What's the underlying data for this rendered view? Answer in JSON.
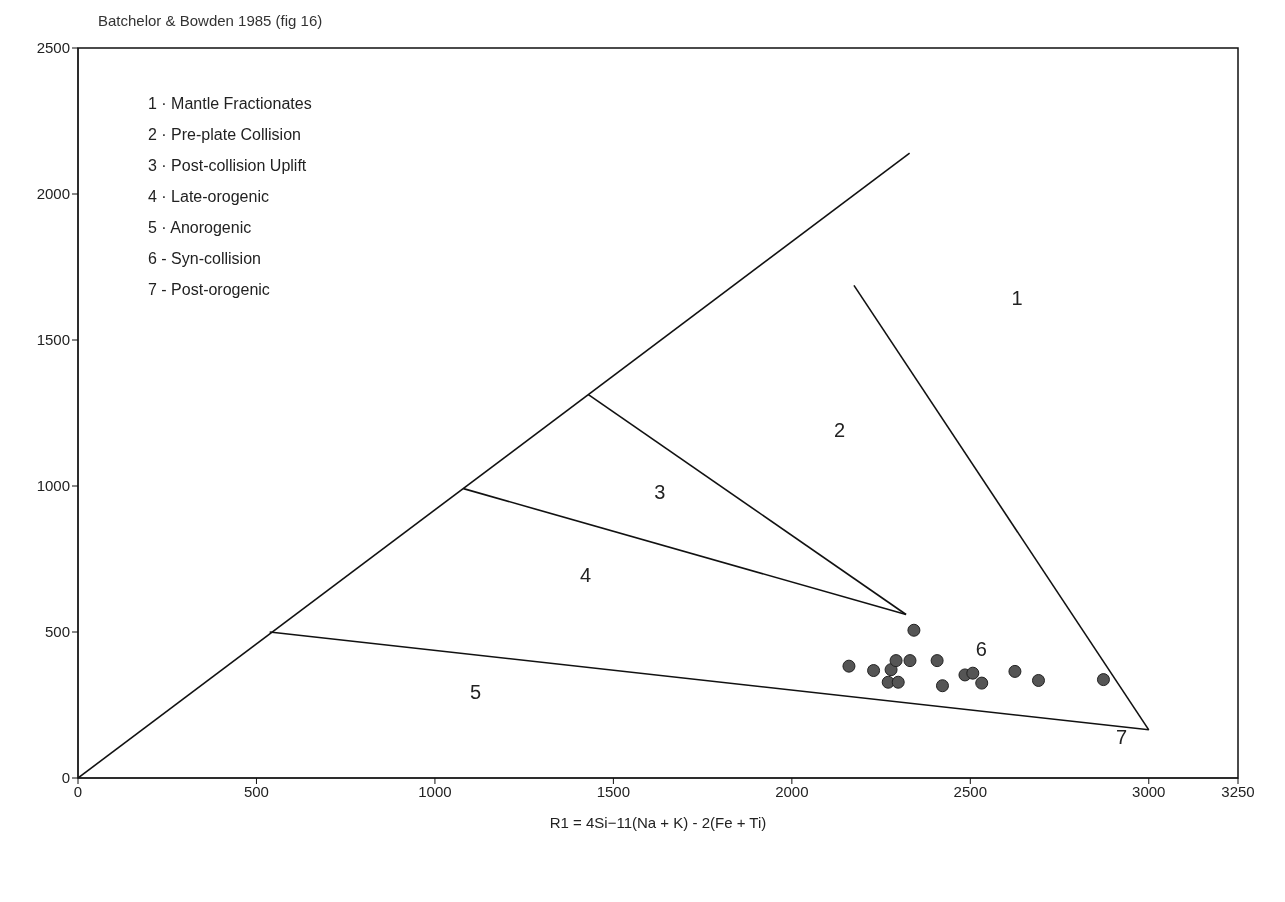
{
  "chart_data": {
    "type": "scatter",
    "title": "Batchelor & Bowden 1985 (fig 16)",
    "xlabel": "R1 = 4Si−11(Na + K) - 2(Fe + Ti)",
    "xlim": [
      0,
      3250
    ],
    "xticks": [
      0,
      500,
      1000,
      1500,
      2000,
      2500,
      3000,
      3250
    ],
    "ylim": [
      0,
      2500
    ],
    "yticks": [
      0,
      500,
      1000,
      1500,
      2000,
      2500
    ],
    "grid": false,
    "legend": false,
    "marker": "circle",
    "series": [
      {
        "type": "line",
        "marker": "none",
        "color": "#111111",
        "x": [
          0,
          2330
        ],
        "values": [
          0,
          2140
        ]
      },
      {
        "type": "line",
        "marker": "none",
        "color": "#111111",
        "x": [
          2174,
          3000
        ],
        "values": [
          1687,
          165
        ]
      },
      {
        "type": "line",
        "marker": "none",
        "color": "#111111",
        "x": [
          537,
          3000
        ],
        "values": [
          500,
          165
        ]
      },
      {
        "type": "line",
        "marker": "none",
        "color": "#111111",
        "x": [
          1430,
          2320
        ],
        "values": [
          1313,
          560
        ]
      },
      {
        "type": "line",
        "marker": "none",
        "color": "#111111",
        "x": [
          1080,
          2320
        ],
        "values": [
          991,
          560
        ]
      },
      {
        "type": "scatter",
        "color": "#555555",
        "x": [
          2160,
          2229,
          2270,
          2298,
          2278,
          2292,
          2331,
          2342,
          2407,
          2422,
          2485,
          2507,
          2532,
          2625,
          2691,
          2873
        ],
        "values": [
          383,
          368,
          328,
          328,
          371,
          402,
          402,
          506,
          402,
          316,
          353,
          359,
          325,
          365,
          334,
          337
        ]
      }
    ],
    "annotations": [
      "1 · Mantle Fractionates",
      "2 · Pre-plate Collision",
      "3 · Post-collision Uplift",
      "4 · Late-orogenic",
      "5 · Anorogenic",
      "6 - Syn-collision",
      "7 - Post-orogenic",
      "1",
      "2",
      "3",
      "4",
      "5",
      "6",
      "7"
    ]
  }
}
